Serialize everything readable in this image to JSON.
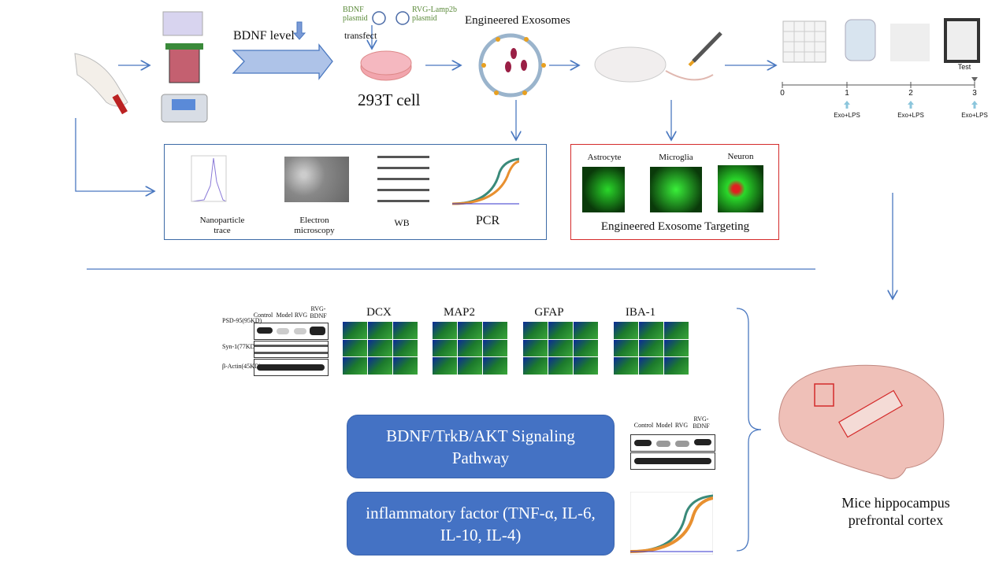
{
  "top": {
    "bdnf_level": "BDNF level",
    "bdnf_plasmid": "BDNF plasmid",
    "rvg_plasmid": "RVG-Lamp2b plasmid",
    "transfect": "transfect",
    "cell": "293T cell",
    "exosomes": "Engineered Exosomes"
  },
  "timeline": {
    "ticks": [
      "0",
      "1",
      "2",
      "3"
    ],
    "test": "Test",
    "injection": "Exo+LPS"
  },
  "characterization": {
    "labels": [
      "Nanoparticle trace",
      "Electron microscopy",
      "WB",
      "PCR"
    ]
  },
  "targeting": {
    "cells": [
      "Astrocyte",
      "Microglia",
      "Neuron"
    ],
    "caption": "Engineered Exosome Targeting"
  },
  "wb": {
    "columns": [
      "Control",
      "Model",
      "RVG",
      "RVG-BDNF"
    ],
    "rows": [
      "PSD-95(95KD)",
      "Syn-1(77KD)",
      "β-Actin(45KD)"
    ]
  },
  "stains": [
    "DCX",
    "MAP2",
    "GFAP",
    "IBA-1"
  ],
  "pathways": [
    "BDNF/TrkB/AKT Signaling Pathway",
    "inflammatory factor (TNF-α, IL-6, IL-10, IL-4)"
  ],
  "brain": {
    "caption": "Mice hippocampus prefrontal cortex"
  },
  "colors": {
    "arrow": "#4a78c0",
    "box_blue": "#3c6aa6",
    "box_red": "#d42a2a",
    "pill": "#4472c4",
    "plasmid_text": "#5b8a3a"
  }
}
